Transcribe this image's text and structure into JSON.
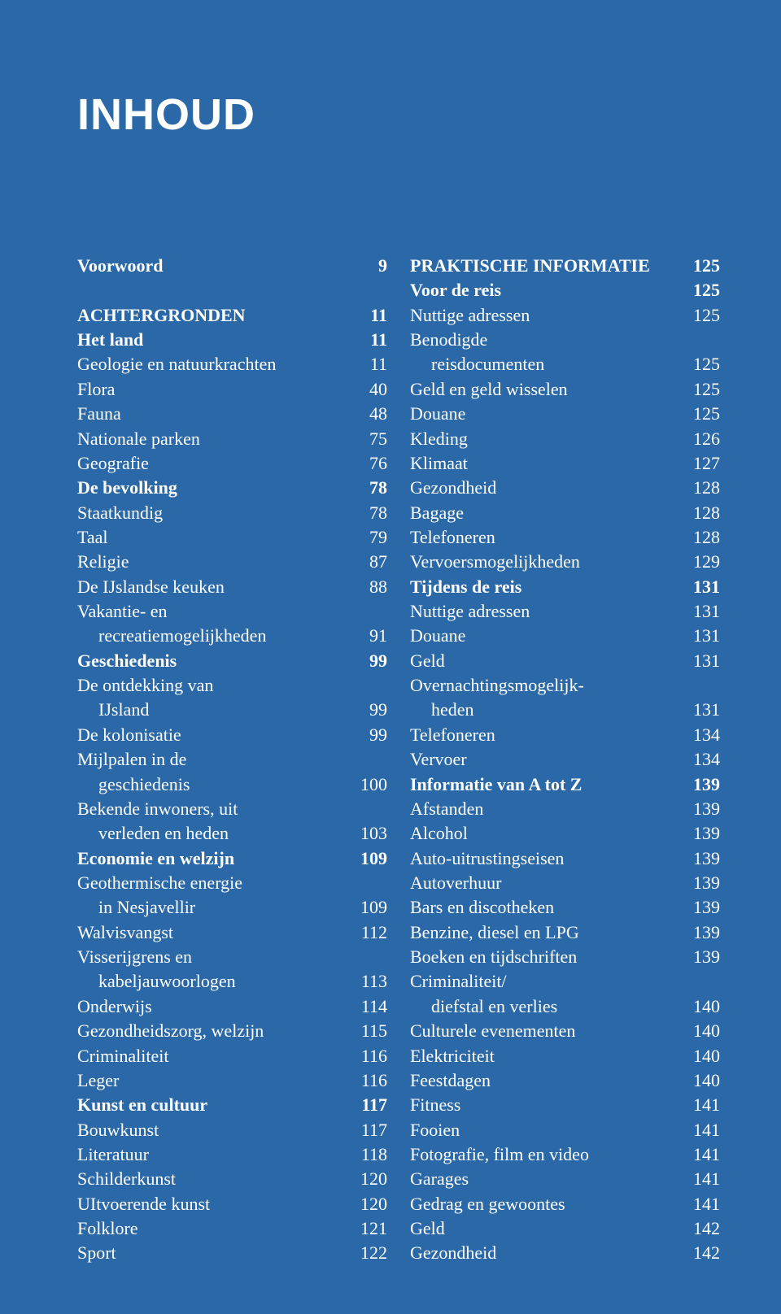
{
  "page": {
    "title": "INHOUD",
    "background_color": "#2a68a8",
    "text_color": "#ffffff",
    "title_fontsize": 54,
    "body_fontsize": 22,
    "line_height": 1.38
  },
  "columns": [
    [
      {
        "label": "Voorwoord",
        "page": "9",
        "bold": true
      },
      {
        "label": "",
        "page": "",
        "spacer": true
      },
      {
        "label": "ACHTERGRONDEN",
        "page": "11",
        "bold": true
      },
      {
        "label": "Het land",
        "page": "11",
        "bold": true
      },
      {
        "label": "Geologie en natuurkrachten",
        "page": "11"
      },
      {
        "label": "Flora",
        "page": "40"
      },
      {
        "label": "Fauna",
        "page": "48"
      },
      {
        "label": "Nationale parken",
        "page": "75"
      },
      {
        "label": "Geografie",
        "page": "76"
      },
      {
        "label": "De bevolking",
        "page": "78",
        "bold": true
      },
      {
        "label": "Staatkundig",
        "page": "78"
      },
      {
        "label": "Taal",
        "page": "79"
      },
      {
        "label": "Religie",
        "page": "87"
      },
      {
        "label": "De IJslandse keuken",
        "page": "88"
      },
      {
        "label": "Vakantie- en",
        "page": "",
        "cont": true
      },
      {
        "label": "recreatiemogelijkheden",
        "page": "91",
        "indent": 1
      },
      {
        "label": "Geschiedenis",
        "page": "99",
        "bold": true
      },
      {
        "label": "De ontdekking van",
        "page": "",
        "cont": true
      },
      {
        "label": "IJsland",
        "page": "99",
        "indent": 1
      },
      {
        "label": "De kolonisatie",
        "page": "99"
      },
      {
        "label": "Mijlpalen in de",
        "page": "",
        "cont": true
      },
      {
        "label": "geschiedenis",
        "page": "100",
        "indent": 1
      },
      {
        "label": "Bekende inwoners, uit",
        "page": "",
        "cont": true
      },
      {
        "label": "verleden en heden",
        "page": "103",
        "indent": 1
      },
      {
        "label": "Economie en welzijn",
        "page": "109",
        "bold": true
      },
      {
        "label": "Geothermische energie",
        "page": "",
        "cont": true
      },
      {
        "label": "in Nesjavellir",
        "page": "109",
        "indent": 1
      },
      {
        "label": "Walvisvangst",
        "page": "112"
      },
      {
        "label": "Visserijgrens en",
        "page": "",
        "cont": true
      },
      {
        "label": "kabeljauwoorlogen",
        "page": "113",
        "indent": 1
      },
      {
        "label": "Onderwijs",
        "page": "114"
      },
      {
        "label": "Gezondheidszorg, welzijn",
        "page": "115"
      },
      {
        "label": "Criminaliteit",
        "page": "116"
      },
      {
        "label": "Leger",
        "page": "116"
      },
      {
        "label": "Kunst en cultuur",
        "page": "117",
        "bold": true
      },
      {
        "label": "Bouwkunst",
        "page": "117"
      },
      {
        "label": "Literatuur",
        "page": "118"
      },
      {
        "label": "Schilderkunst",
        "page": "120"
      },
      {
        "label": "UItvoerende kunst",
        "page": "120"
      },
      {
        "label": "Folklore",
        "page": "121"
      },
      {
        "label": "Sport",
        "page": "122"
      }
    ],
    [
      {
        "label": "PRAKTISCHE INFORMATIE",
        "page": "125",
        "bold": true
      },
      {
        "label": "Voor de reis",
        "page": "125",
        "bold": true
      },
      {
        "label": "Nuttige adressen",
        "page": "125"
      },
      {
        "label": "Benodigde",
        "page": "",
        "cont": true
      },
      {
        "label": "reisdocumenten",
        "page": "125",
        "indent": 1
      },
      {
        "label": "Geld en geld wisselen",
        "page": "125"
      },
      {
        "label": "Douane",
        "page": "125"
      },
      {
        "label": "Kleding",
        "page": "126"
      },
      {
        "label": "Klimaat",
        "page": "127"
      },
      {
        "label": "Gezondheid",
        "page": "128"
      },
      {
        "label": "Bagage",
        "page": "128"
      },
      {
        "label": "Telefoneren",
        "page": "128"
      },
      {
        "label": "Vervoersmogelijkheden",
        "page": "129"
      },
      {
        "label": "Tijdens de reis",
        "page": "131",
        "bold": true
      },
      {
        "label": "Nuttige adressen",
        "page": "131"
      },
      {
        "label": "Douane",
        "page": "131"
      },
      {
        "label": "Geld",
        "page": "131"
      },
      {
        "label": "Overnachtingsmogelijk-",
        "page": "",
        "cont": true
      },
      {
        "label": "heden",
        "page": "131",
        "indent": 1
      },
      {
        "label": "Telefoneren",
        "page": "134"
      },
      {
        "label": "Vervoer",
        "page": "134"
      },
      {
        "label": "Informatie van A tot Z",
        "page": "139",
        "bold": true
      },
      {
        "label": "Afstanden",
        "page": "139"
      },
      {
        "label": "Alcohol",
        "page": "139"
      },
      {
        "label": "Auto-uitrustingseisen",
        "page": "139"
      },
      {
        "label": "Autoverhuur",
        "page": "139"
      },
      {
        "label": "Bars en discotheken",
        "page": "139"
      },
      {
        "label": "Benzine, diesel en LPG",
        "page": "139"
      },
      {
        "label": "Boeken en tijdschriften",
        "page": "139"
      },
      {
        "label": "Criminaliteit/",
        "page": "",
        "cont": true
      },
      {
        "label": "diefstal en verlies",
        "page": "140",
        "indent": 1
      },
      {
        "label": "Culturele evenementen",
        "page": "140"
      },
      {
        "label": "Elektriciteit",
        "page": "140"
      },
      {
        "label": "Feestdagen",
        "page": "140"
      },
      {
        "label": "Fitness",
        "page": "141"
      },
      {
        "label": "Fooien",
        "page": "141"
      },
      {
        "label": "Fotografie, film en video",
        "page": "141"
      },
      {
        "label": "Garages",
        "page": "141"
      },
      {
        "label": "Gedrag en gewoontes",
        "page": "141"
      },
      {
        "label": "Geld",
        "page": "142"
      },
      {
        "label": "Gezondheid",
        "page": "142"
      }
    ]
  ]
}
